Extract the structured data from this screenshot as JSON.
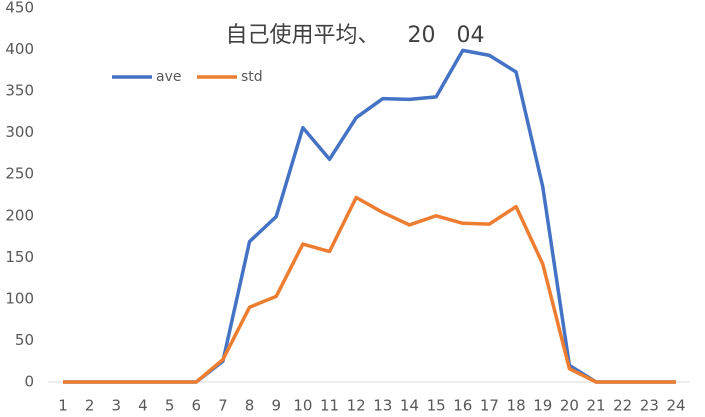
{
  "chart_data": {
    "type": "line",
    "title": "自己使用平均、    20   04",
    "categories": [
      "1",
      "2",
      "3",
      "4",
      "5",
      "6",
      "7",
      "8",
      "9",
      "10",
      "11",
      "12",
      "13",
      "14",
      "15",
      "16",
      "17",
      "18",
      "19",
      "20",
      "21",
      "22",
      "23",
      "24"
    ],
    "series": [
      {
        "name": "ave",
        "color": "#4472c4",
        "values": [
          0,
          0,
          0,
          0,
          0,
          0,
          25,
          169,
          199,
          306,
          268,
          318,
          341,
          340,
          343,
          399,
          393,
          373,
          235,
          20,
          0,
          0,
          0,
          0
        ]
      },
      {
        "name": "std",
        "color": "#ed7d31",
        "values": [
          0,
          0,
          0,
          0,
          0,
          0,
          27,
          90,
          103,
          166,
          157,
          222,
          204,
          189,
          200,
          191,
          190,
          211,
          142,
          16,
          0,
          0,
          0,
          0
        ]
      }
    ],
    "ylim": [
      0,
      450
    ],
    "yticks": [
      0,
      50,
      100,
      150,
      200,
      250,
      300,
      350,
      400,
      450
    ],
    "grid": false,
    "legend": "upper left"
  }
}
